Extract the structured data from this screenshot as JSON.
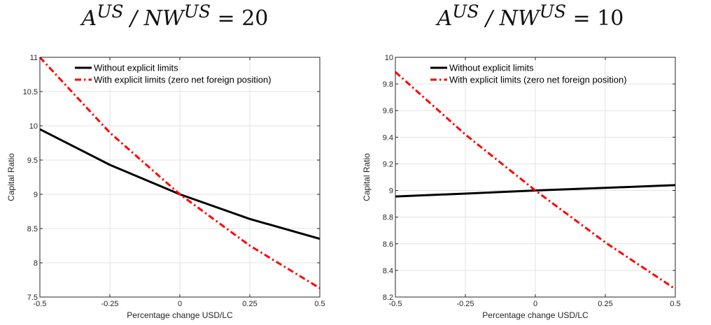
{
  "chart_data": [
    {
      "type": "line",
      "title": "A^US / NW^US = 20",
      "title_parts": {
        "base1": "A",
        "sup1": "US",
        "slash": " / ",
        "base2": "NW",
        "sup2": "US",
        "rest": " = 20"
      },
      "xlabel": "Percentage change USD/LC",
      "ylabel": "Capital Ratio",
      "xlim": [
        -0.5,
        0.5
      ],
      "ylim": [
        7.5,
        11
      ],
      "xticks": [
        -0.5,
        -0.25,
        0,
        0.25,
        0.5
      ],
      "xtick_labels": [
        "-0.5",
        "-0.25",
        "0",
        "0.25",
        "0.5"
      ],
      "yticks": [
        7.5,
        8,
        8.5,
        9,
        9.5,
        10,
        10.5,
        11
      ],
      "ytick_labels": [
        "7.5",
        "8",
        "8.5",
        "9",
        "9.5",
        "10",
        "10.5",
        "11"
      ],
      "grid": true,
      "legend_position": "top-right",
      "series": [
        {
          "name": "Without explicit limits",
          "color": "#000000",
          "style": "solid",
          "x": [
            -0.5,
            -0.25,
            0,
            0.25,
            0.5
          ],
          "y": [
            9.95,
            9.43,
            9.0,
            8.64,
            8.35
          ]
        },
        {
          "name": "With explicit limits (zero net foreign position)",
          "color": "#ff0000",
          "style": "dashdot",
          "x": [
            -0.5,
            -0.25,
            0,
            0.25,
            0.5
          ],
          "y": [
            11.0,
            9.9,
            9.0,
            8.25,
            7.63
          ]
        }
      ]
    },
    {
      "type": "line",
      "title": "A^US / NW^US = 10",
      "title_parts": {
        "base1": "A",
        "sup1": "US",
        "slash": " / ",
        "base2": "NW",
        "sup2": "US",
        "rest": " = 10"
      },
      "xlabel": "Percentage change USD/LC",
      "ylabel": "Capital Ratio",
      "xlim": [
        -0.5,
        0.5
      ],
      "ylim": [
        8.2,
        10
      ],
      "xticks": [
        -0.5,
        -0.25,
        0,
        0.25,
        0.5
      ],
      "xtick_labels": [
        "-0.5",
        "-0.25",
        "0",
        "0.25",
        "0.5"
      ],
      "yticks": [
        8.2,
        8.4,
        8.6,
        8.8,
        9,
        9.2,
        9.4,
        9.6,
        9.8,
        10
      ],
      "ytick_labels": [
        "8.2",
        "8.4",
        "8.6",
        "8.8",
        "9",
        "9.2",
        "9.4",
        "9.6",
        "9.8",
        "10"
      ],
      "grid": true,
      "legend_position": "top-right",
      "series": [
        {
          "name": "Without explicit limits",
          "color": "#000000",
          "style": "solid",
          "x": [
            -0.5,
            -0.25,
            0,
            0.25,
            0.5
          ],
          "y": [
            8.955,
            8.977,
            9.0,
            9.02,
            9.04
          ]
        },
        {
          "name": "With explicit limits (zero net foreign position)",
          "color": "#ff0000",
          "style": "dashdot",
          "x": [
            -0.5,
            -0.25,
            0,
            0.25,
            0.5
          ],
          "y": [
            9.89,
            9.42,
            9.0,
            8.61,
            8.26
          ]
        }
      ]
    }
  ]
}
